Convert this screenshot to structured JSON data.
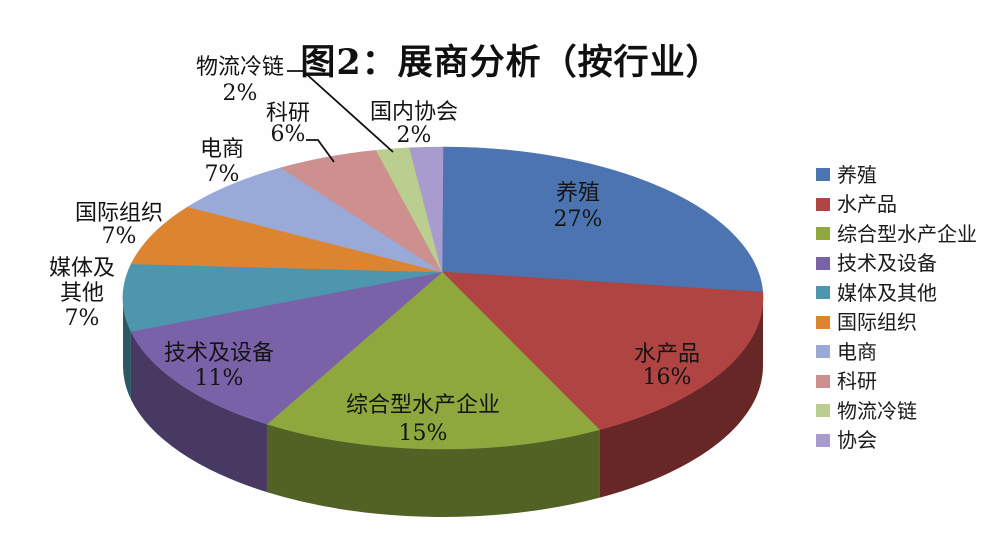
{
  "chart_data": {
    "type": "pie",
    "style": "3d-perspective",
    "title": "图2：展商分析（按行业）",
    "unit": "%",
    "legend_position": "right",
    "total": 100,
    "slices": [
      {
        "label": "养殖",
        "value": 27,
        "percent_text": "27%",
        "color": "#4C74B1",
        "legend_label": "养殖",
        "callout_lines": [
          "养殖",
          "27%"
        ]
      },
      {
        "label": "水产品",
        "value": 16,
        "percent_text": "16%",
        "color": "#AF4442",
        "legend_label": "水产品",
        "callout_lines": [
          "水产品",
          "16%"
        ]
      },
      {
        "label": "综合型水产企业",
        "value": 15,
        "percent_text": "15%",
        "color": "#8EA83E",
        "legend_label": "综合型水产企业",
        "callout_lines": [
          "综合型水产企业",
          "15%"
        ]
      },
      {
        "label": "技术及设备",
        "value": 11,
        "percent_text": "11%",
        "color": "#7A62A8",
        "legend_label": "技术及设备",
        "callout_lines": [
          "技术及设备",
          "11%"
        ]
      },
      {
        "label": "媒体及其他",
        "value": 7,
        "percent_text": "7%",
        "color": "#4D96AE",
        "legend_label": "媒体及其他",
        "callout_lines": [
          "媒体及",
          "其他",
          "7%"
        ]
      },
      {
        "label": "国际组织",
        "value": 7,
        "percent_text": "7%",
        "color": "#DD8431",
        "legend_label": "国际组织",
        "callout_lines": [
          "国际组织",
          "7%"
        ]
      },
      {
        "label": "电商",
        "value": 7,
        "percent_text": "7%",
        "color": "#99A9D8",
        "legend_label": "电商",
        "callout_lines": [
          "电商",
          "7%"
        ]
      },
      {
        "label": "科研",
        "value": 6,
        "percent_text": "6%",
        "color": "#CE8F8F",
        "legend_label": "科研",
        "callout_lines": [
          "科研",
          "6%"
        ]
      },
      {
        "label": "物流冷链",
        "value": 2,
        "percent_text": "2%",
        "color": "#BACE90",
        "legend_label": "物流冷链",
        "callout_lines": [
          "物流冷链",
          "2%"
        ]
      },
      {
        "label": "国内协会",
        "value": 2,
        "percent_text": "2%",
        "color": "#A89CCE",
        "legend_label": "协会",
        "callout_lines": [
          "国内协会",
          "2%"
        ]
      }
    ]
  }
}
